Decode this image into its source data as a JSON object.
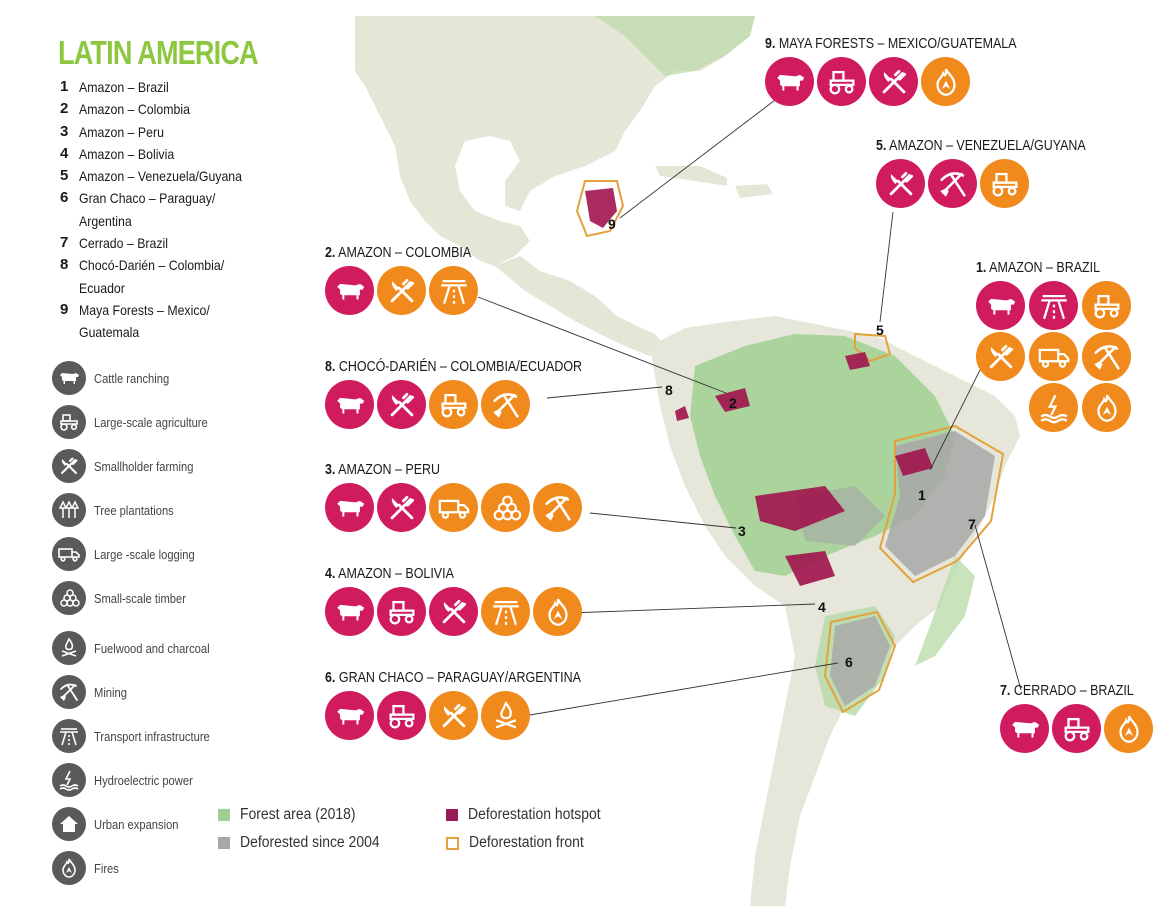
{
  "title": "LATIN AMERICA",
  "regions": [
    {
      "num": "1",
      "name": "Amazon – Brazil"
    },
    {
      "num": "2",
      "name": "Amazon – Colombia"
    },
    {
      "num": "3",
      "name": "Amazon – Peru"
    },
    {
      "num": "4",
      "name": "Amazon – Bolivia"
    },
    {
      "num": "5",
      "name": "Amazon – Venezuela/Guyana"
    },
    {
      "num": "6",
      "name": "Gran Chaco – Paraguay/ Argentina"
    },
    {
      "num": "7",
      "name": "Cerrado – Brazil"
    },
    {
      "num": "8",
      "name": "Chocó-Darién – Colombia/ Ecuador"
    },
    {
      "num": "9",
      "name": "Maya Forests – Mexico/ Guatemala"
    }
  ],
  "drivers": [
    {
      "icon": "cattle-icon",
      "label": "Cattle ranching"
    },
    {
      "icon": "tractor-icon",
      "label": "Large-scale agriculture"
    },
    {
      "icon": "fork-knife-icon",
      "label": "Smallholder farming"
    },
    {
      "icon": "trees-icon",
      "label": "Tree plantations"
    },
    {
      "icon": "truck-icon",
      "label": "Large -scale logging"
    },
    {
      "icon": "logs-icon",
      "label": "Small-scale timber"
    },
    {
      "icon": "campfire-icon",
      "label": "Fuelwood and charcoal"
    },
    {
      "icon": "pick-shovel-icon",
      "label": "Mining"
    },
    {
      "icon": "road-icon",
      "label": "Transport infrastructure"
    },
    {
      "icon": "hydro-icon",
      "label": "Hydroelectric power"
    },
    {
      "icon": "house-icon",
      "label": "Urban expansion"
    },
    {
      "icon": "fire-icon",
      "label": "Fires"
    }
  ],
  "callouts": {
    "maya": {
      "num": "9.",
      "title": "MAYA FORESTS – MEXICO/GUATEMALA",
      "icons": [
        {
          "icon": "cattle",
          "kind": "hotspot"
        },
        {
          "icon": "tractor",
          "kind": "hotspot"
        },
        {
          "icon": "fork",
          "kind": "hotspot"
        },
        {
          "icon": "fire",
          "kind": "front"
        }
      ]
    },
    "venezuela": {
      "num": "5.",
      "title": "AMAZON – VENEZUELA/GUYANA",
      "icons": [
        {
          "icon": "fork",
          "kind": "hotspot"
        },
        {
          "icon": "mining",
          "kind": "hotspot"
        },
        {
          "icon": "tractor",
          "kind": "front"
        }
      ]
    },
    "brazil": {
      "num": "1.",
      "title": "AMAZON – BRAZIL",
      "icons": [
        {
          "icon": "cattle",
          "kind": "hotspot"
        },
        {
          "icon": "road",
          "kind": "hotspot"
        },
        {
          "icon": "tractor",
          "kind": "front"
        },
        {
          "icon": "fork",
          "kind": "front"
        },
        {
          "icon": "truck",
          "kind": "front"
        },
        {
          "icon": "mining",
          "kind": "front"
        },
        {
          "icon": "none",
          "kind": "none"
        },
        {
          "icon": "hydro",
          "kind": "front"
        },
        {
          "icon": "fire",
          "kind": "front"
        }
      ]
    },
    "colombia": {
      "num": "2.",
      "title": "AMAZON – COLOMBIA",
      "icons": [
        {
          "icon": "cattle",
          "kind": "hotspot"
        },
        {
          "icon": "fork",
          "kind": "front"
        },
        {
          "icon": "road",
          "kind": "front"
        }
      ]
    },
    "choco": {
      "num": "8.",
      "title": "CHOCÓ-DARIÉN – COLOMBIA/ECUADOR",
      "icons": [
        {
          "icon": "cattle",
          "kind": "hotspot"
        },
        {
          "icon": "fork",
          "kind": "hotspot"
        },
        {
          "icon": "tractor",
          "kind": "front"
        },
        {
          "icon": "mining",
          "kind": "front"
        }
      ]
    },
    "peru": {
      "num": "3.",
      "title": "AMAZON – PERU",
      "icons": [
        {
          "icon": "cattle",
          "kind": "hotspot"
        },
        {
          "icon": "fork",
          "kind": "hotspot"
        },
        {
          "icon": "truck",
          "kind": "front"
        },
        {
          "icon": "logs",
          "kind": "front"
        },
        {
          "icon": "mining",
          "kind": "front"
        }
      ]
    },
    "bolivia": {
      "num": "4.",
      "title": "AMAZON – BOLIVIA",
      "icons": [
        {
          "icon": "cattle",
          "kind": "hotspot"
        },
        {
          "icon": "tractor",
          "kind": "hotspot"
        },
        {
          "icon": "fork",
          "kind": "hotspot"
        },
        {
          "icon": "road",
          "kind": "front"
        },
        {
          "icon": "fire",
          "kind": "front"
        }
      ]
    },
    "chaco": {
      "num": "6.",
      "title": "GRAN CHACO – PARAGUAY/ARGENTINA",
      "icons": [
        {
          "icon": "cattle",
          "kind": "hotspot"
        },
        {
          "icon": "tractor",
          "kind": "hotspot"
        },
        {
          "icon": "fork",
          "kind": "front"
        },
        {
          "icon": "campfire",
          "kind": "front"
        }
      ]
    },
    "cerrado": {
      "num": "7.",
      "title": "CERRADO – BRAZIL",
      "icons": [
        {
          "icon": "cattle",
          "kind": "hotspot"
        },
        {
          "icon": "tractor",
          "kind": "hotspot"
        },
        {
          "icon": "fire",
          "kind": "front"
        }
      ]
    }
  },
  "map_labels": {
    "m1": "1",
    "m2": "2",
    "m3": "3",
    "m4": "4",
    "m5": "5",
    "m6": "6",
    "m7": "7",
    "m8": "8",
    "m9": "9"
  },
  "key": {
    "forest": "Forest area (2018)",
    "deforested": "Deforested since 2004",
    "hotspot": "Deforestation hotspot",
    "front": "Deforestation front"
  },
  "colors": {
    "title_green": "#8dc63f",
    "hotspot": "#d11b5f",
    "front": "#f18a1c",
    "legend_icon": "#5a5a5a",
    "forest": "#9fcf94",
    "deforested": "#a7a7a7",
    "land": "#e6e7da",
    "sea": "#ffffff"
  }
}
